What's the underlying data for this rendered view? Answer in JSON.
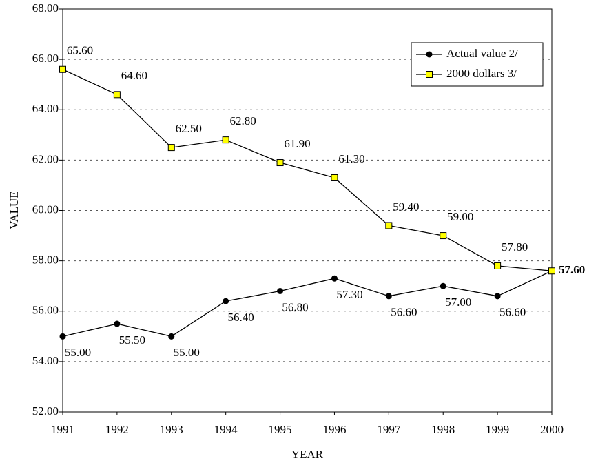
{
  "chart_data": {
    "type": "line",
    "x_label": "YEAR",
    "y_label": "VALUE",
    "x": [
      1991,
      1992,
      1993,
      1994,
      1995,
      1996,
      1997,
      1998,
      1999,
      2000
    ],
    "series": [
      {
        "name": "Actual value 2/",
        "color": "#000000",
        "marker": "circle",
        "values": [
          55.0,
          55.5,
          55.0,
          56.4,
          56.8,
          57.3,
          56.6,
          57.0,
          56.6,
          57.6
        ],
        "value_labels": [
          "55.00",
          "55.50",
          "55.00",
          "56.40",
          "56.80",
          "57.30",
          "56.60",
          "57.00",
          "56.60",
          null
        ]
      },
      {
        "name": "2000 dollars 3/",
        "color": "#ffff00",
        "marker": "square",
        "values": [
          65.6,
          64.6,
          62.5,
          62.8,
          61.9,
          61.3,
          59.4,
          59.0,
          57.8,
          57.6
        ],
        "value_labels": [
          "65.60",
          "64.60",
          "62.50",
          "62.80",
          "61.90",
          "61.30",
          "59.40",
          "59.00",
          "57.80",
          "57.60"
        ]
      }
    ],
    "xlim": [
      1991,
      2000
    ],
    "xticks": [
      1991,
      1992,
      1993,
      1994,
      1995,
      1996,
      1997,
      1998,
      1999,
      2000
    ],
    "ylim": [
      52,
      68
    ],
    "yticks": [
      {
        "value": 52,
        "label": "52.00"
      },
      {
        "value": 54,
        "label": "54.00"
      },
      {
        "value": 56,
        "label": "56.00"
      },
      {
        "value": 58,
        "label": "58.00"
      },
      {
        "value": 60,
        "label": "60.00"
      },
      {
        "value": 62,
        "label": "62.00"
      },
      {
        "value": 64,
        "label": "64.00"
      },
      {
        "value": 66,
        "label": "66.00"
      },
      {
        "value": 68,
        "label": "68.00"
      }
    ],
    "grid": true,
    "legend": "top-right"
  }
}
